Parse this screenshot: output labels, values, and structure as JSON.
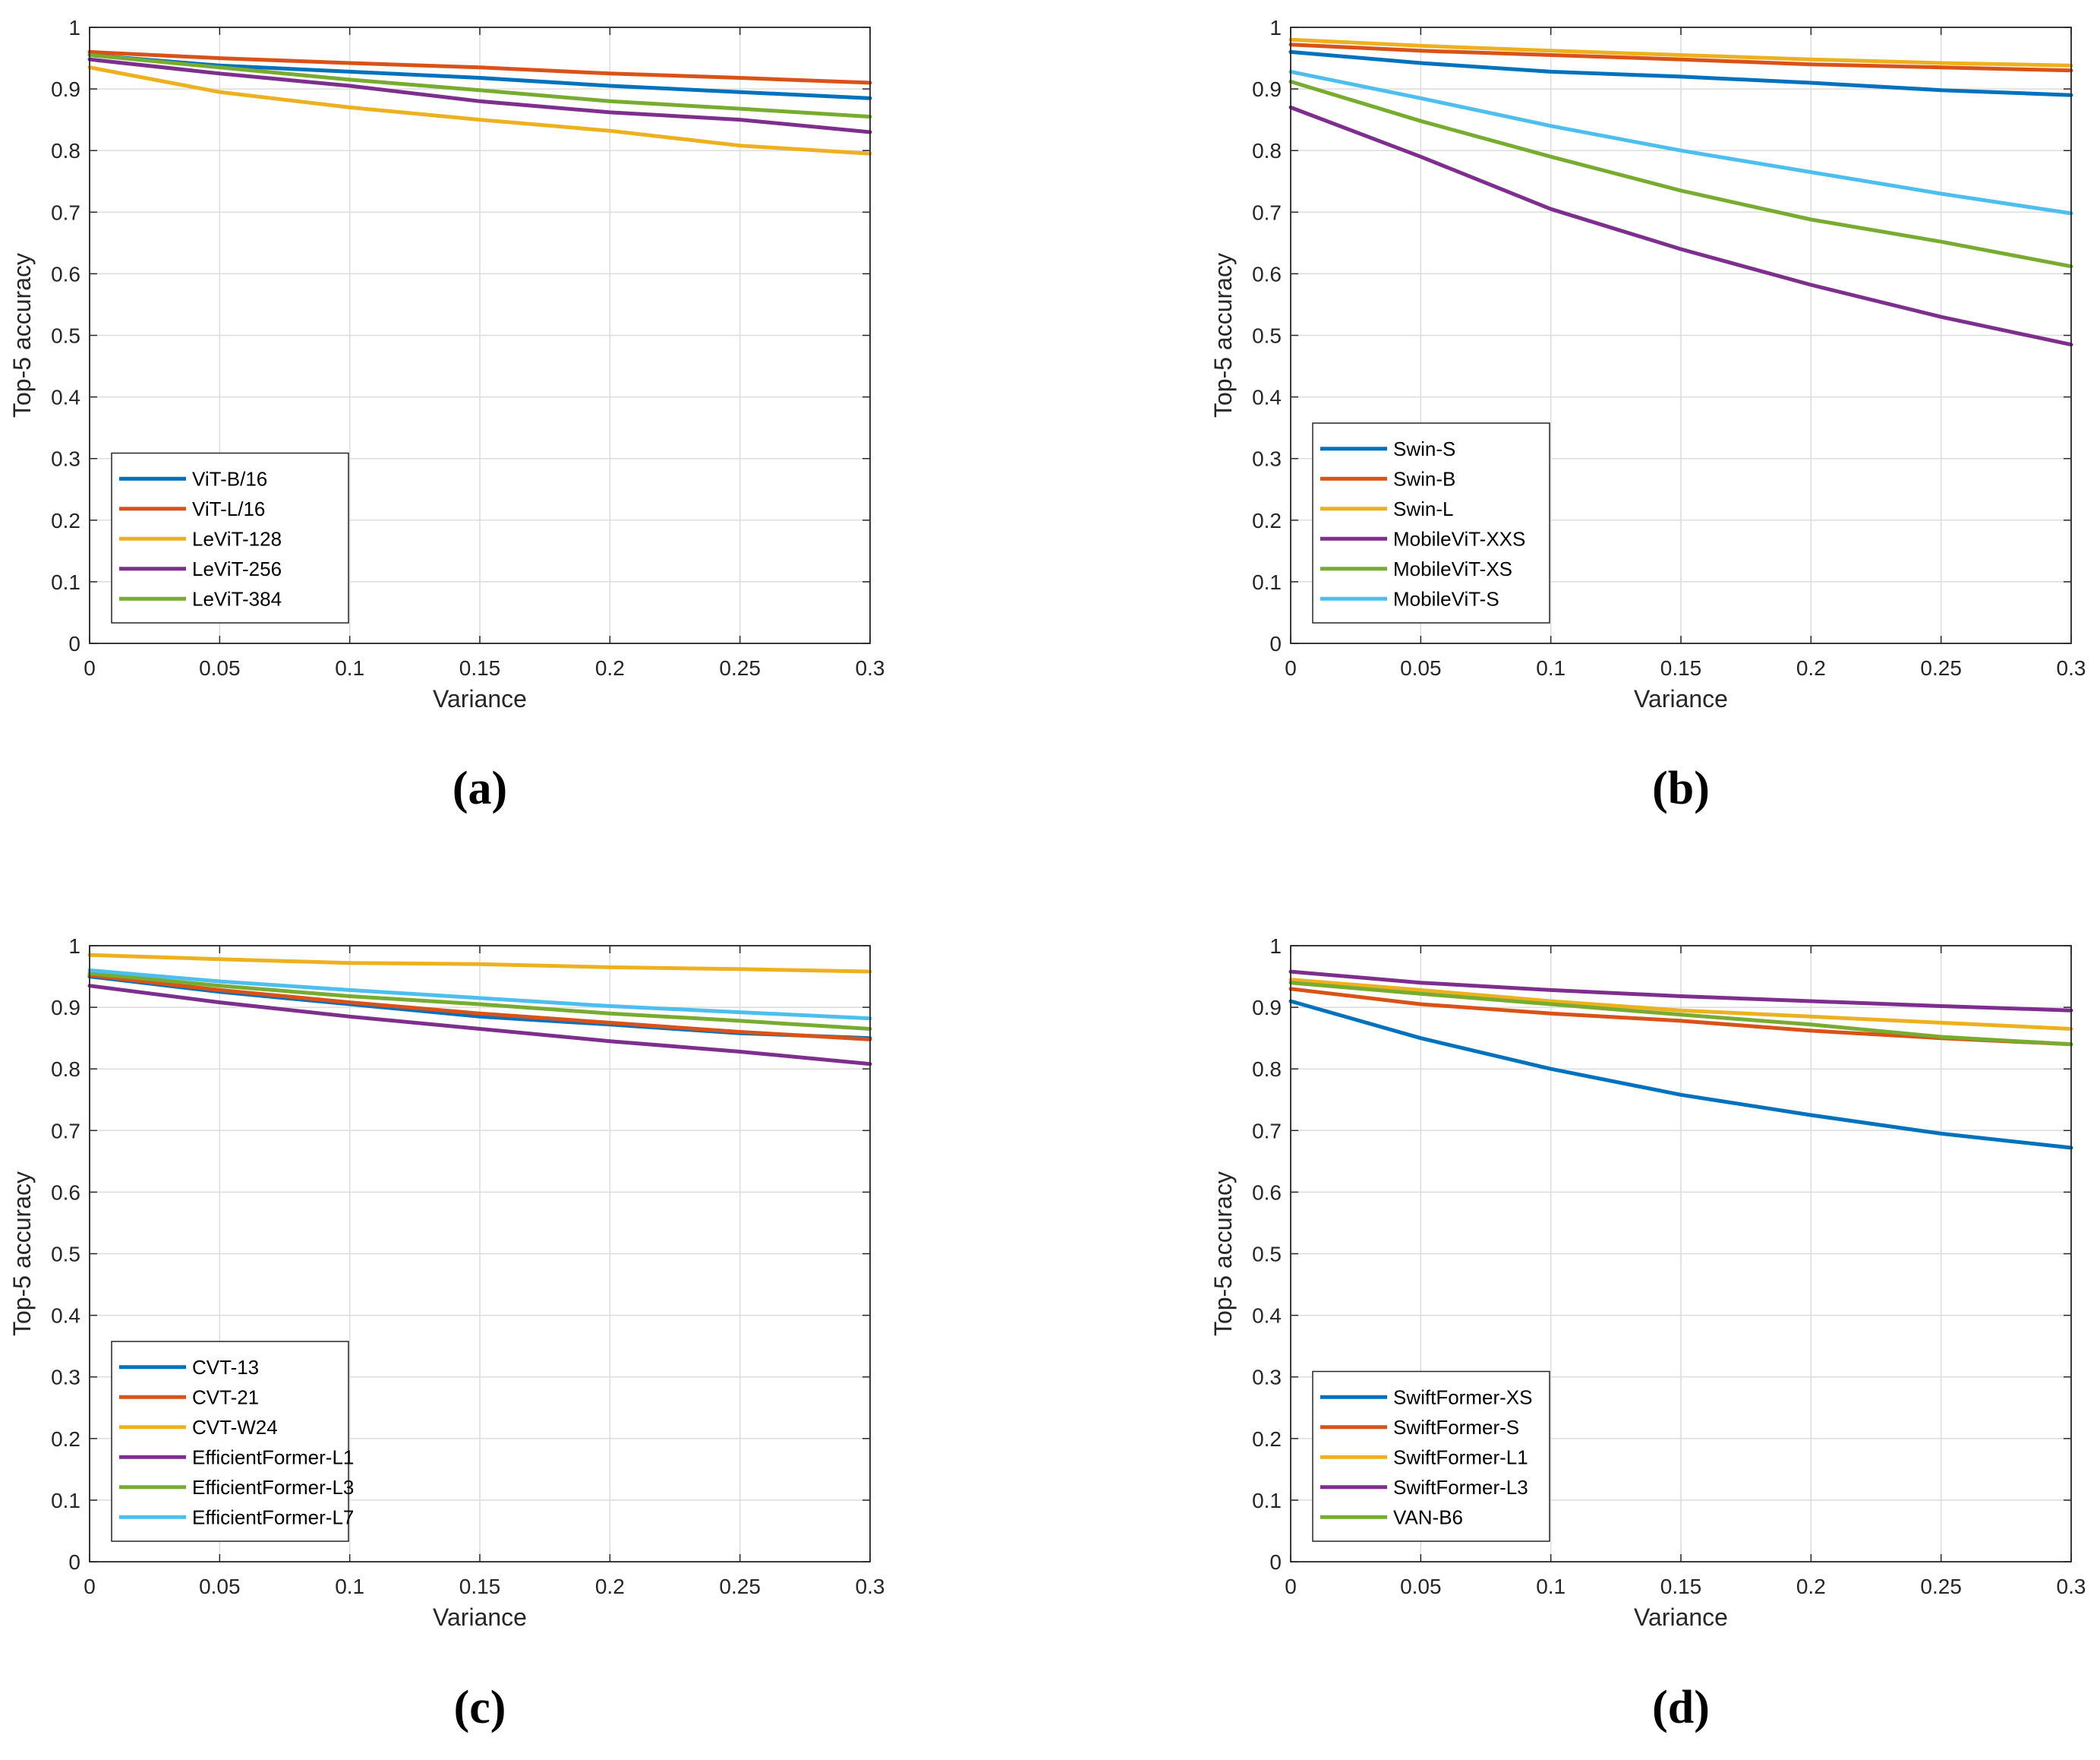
{
  "chart_data": [
    {
      "panel": "(a)",
      "type": "line",
      "xlabel": "Variance",
      "ylabel": "Top-5 accuracy",
      "xlim": [
        0,
        0.3
      ],
      "ylim": [
        0,
        1
      ],
      "xticks": [
        "0",
        "0.05",
        "0.1",
        "0.15",
        "0.2",
        "0.25",
        "0.3"
      ],
      "yticks": [
        "0",
        "0.1",
        "0.2",
        "0.3",
        "0.4",
        "0.5",
        "0.6",
        "0.7",
        "0.8",
        "0.9",
        "1"
      ],
      "grid": true,
      "legend_position": "bottom-left",
      "x": [
        0,
        0.05,
        0.1,
        0.15,
        0.2,
        0.25,
        0.3
      ],
      "series": [
        {
          "name": "ViT-B/16",
          "color": "#0072BD",
          "values": [
            0.955,
            0.938,
            0.928,
            0.918,
            0.905,
            0.895,
            0.885
          ]
        },
        {
          "name": "ViT-L/16",
          "color": "#D95319",
          "values": [
            0.96,
            0.95,
            0.942,
            0.935,
            0.925,
            0.918,
            0.91
          ]
        },
        {
          "name": "LeViT-128",
          "color": "#EDB120",
          "values": [
            0.935,
            0.895,
            0.87,
            0.85,
            0.832,
            0.808,
            0.795
          ]
        },
        {
          "name": "LeViT-256",
          "color": "#7E2F8E",
          "values": [
            0.948,
            0.925,
            0.905,
            0.88,
            0.862,
            0.85,
            0.83
          ]
        },
        {
          "name": "LeViT-384",
          "color": "#77AC30",
          "values": [
            0.955,
            0.935,
            0.915,
            0.898,
            0.88,
            0.868,
            0.855
          ]
        }
      ]
    },
    {
      "panel": "(b)",
      "type": "line",
      "xlabel": "Variance",
      "ylabel": "Top-5 accuracy",
      "xlim": [
        0,
        0.3
      ],
      "ylim": [
        0,
        1
      ],
      "xticks": [
        "0",
        "0.05",
        "0.1",
        "0.15",
        "0.2",
        "0.25",
        "0.3"
      ],
      "yticks": [
        "0",
        "0.1",
        "0.2",
        "0.3",
        "0.4",
        "0.5",
        "0.6",
        "0.7",
        "0.8",
        "0.9",
        "1"
      ],
      "grid": true,
      "legend_position": "bottom-left",
      "x": [
        0,
        0.05,
        0.1,
        0.15,
        0.2,
        0.25,
        0.3
      ],
      "series": [
        {
          "name": "Swin-S",
          "color": "#0072BD",
          "values": [
            0.96,
            0.942,
            0.928,
            0.92,
            0.91,
            0.898,
            0.89
          ]
        },
        {
          "name": "Swin-B",
          "color": "#D95319",
          "values": [
            0.972,
            0.962,
            0.955,
            0.948,
            0.94,
            0.935,
            0.93
          ]
        },
        {
          "name": "Swin-L",
          "color": "#EDB120",
          "values": [
            0.98,
            0.97,
            0.962,
            0.955,
            0.948,
            0.942,
            0.938
          ]
        },
        {
          "name": "MobileViT-XXS",
          "color": "#7E2F8E",
          "values": [
            0.87,
            0.79,
            0.705,
            0.64,
            0.582,
            0.53,
            0.485
          ]
        },
        {
          "name": "MobileViT-XS",
          "color": "#77AC30",
          "values": [
            0.912,
            0.848,
            0.79,
            0.735,
            0.688,
            0.652,
            0.612
          ]
        },
        {
          "name": "MobileViT-S",
          "color": "#4DBEEE",
          "values": [
            0.928,
            0.885,
            0.84,
            0.8,
            0.765,
            0.73,
            0.698
          ]
        }
      ]
    },
    {
      "panel": "(c)",
      "type": "line",
      "xlabel": "Variance",
      "ylabel": "Top-5 accuracy",
      "xlim": [
        0,
        0.3
      ],
      "ylim": [
        0,
        1
      ],
      "xticks": [
        "0",
        "0.05",
        "0.1",
        "0.15",
        "0.2",
        "0.25",
        "0.3"
      ],
      "yticks": [
        "0",
        "0.1",
        "0.2",
        "0.3",
        "0.4",
        "0.5",
        "0.6",
        "0.7",
        "0.8",
        "0.9",
        "1"
      ],
      "grid": true,
      "legend_position": "bottom-left",
      "x": [
        0,
        0.05,
        0.1,
        0.15,
        0.2,
        0.25,
        0.3
      ],
      "series": [
        {
          "name": "CVT-13",
          "color": "#0072BD",
          "values": [
            0.95,
            0.925,
            0.905,
            0.885,
            0.872,
            0.858,
            0.85
          ]
        },
        {
          "name": "CVT-21",
          "color": "#D95319",
          "values": [
            0.952,
            0.928,
            0.908,
            0.89,
            0.875,
            0.86,
            0.848
          ]
        },
        {
          "name": "CVT-W24",
          "color": "#EDB120",
          "values": [
            0.985,
            0.978,
            0.972,
            0.97,
            0.965,
            0.962,
            0.958
          ]
        },
        {
          "name": "EfficientFormer-L1",
          "color": "#7E2F8E",
          "values": [
            0.935,
            0.908,
            0.885,
            0.865,
            0.845,
            0.828,
            0.808
          ]
        },
        {
          "name": "EfficientFormer-L3",
          "color": "#77AC30",
          "values": [
            0.955,
            0.935,
            0.918,
            0.905,
            0.89,
            0.878,
            0.865
          ]
        },
        {
          "name": "EfficientFormer-L7",
          "color": "#4DBEEE",
          "values": [
            0.96,
            0.942,
            0.928,
            0.915,
            0.902,
            0.892,
            0.882
          ]
        }
      ]
    },
    {
      "panel": "(d)",
      "type": "line",
      "xlabel": "Variance",
      "ylabel": "Top-5 accuracy",
      "xlim": [
        0,
        0.3
      ],
      "ylim": [
        0,
        1
      ],
      "xticks": [
        "0",
        "0.05",
        "0.1",
        "0.15",
        "0.2",
        "0.25",
        "0.3"
      ],
      "yticks": [
        "0",
        "0.1",
        "0.2",
        "0.3",
        "0.4",
        "0.5",
        "0.6",
        "0.7",
        "0.8",
        "0.9",
        "1"
      ],
      "grid": true,
      "legend_position": "bottom-left",
      "x": [
        0,
        0.05,
        0.1,
        0.15,
        0.2,
        0.25,
        0.3
      ],
      "series": [
        {
          "name": "SwiftFormer-XS",
          "color": "#0072BD",
          "values": [
            0.91,
            0.85,
            0.8,
            0.758,
            0.725,
            0.695,
            0.672
          ]
        },
        {
          "name": "SwiftFormer-S",
          "color": "#D95319",
          "values": [
            0.93,
            0.905,
            0.89,
            0.878,
            0.862,
            0.85,
            0.84
          ]
        },
        {
          "name": "SwiftFormer-L1",
          "color": "#EDB120",
          "values": [
            0.945,
            0.928,
            0.91,
            0.895,
            0.885,
            0.875,
            0.865
          ]
        },
        {
          "name": "SwiftFormer-L3",
          "color": "#7E2F8E",
          "values": [
            0.958,
            0.94,
            0.928,
            0.918,
            0.91,
            0.902,
            0.895
          ]
        },
        {
          "name": "VAN-B6",
          "color": "#77AC30",
          "values": [
            0.94,
            0.922,
            0.905,
            0.888,
            0.872,
            0.852,
            0.84
          ]
        }
      ]
    }
  ]
}
